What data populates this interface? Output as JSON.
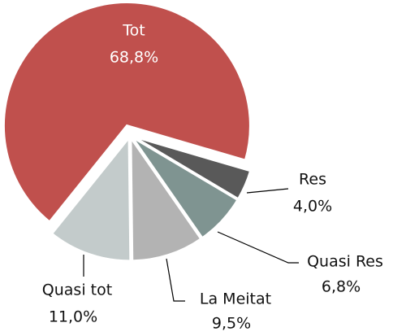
{
  "chart_data": {
    "type": "pie",
    "categories": [
      "Tot",
      "Res",
      "Quasi Res",
      "La Meitat",
      "Quasi tot"
    ],
    "values": [
      68.8,
      4.0,
      6.8,
      9.5,
      11.0
    ],
    "value_labels": [
      "68,8%",
      "4,0%",
      "6,8%",
      "9,5%",
      "11,0%"
    ],
    "colors": [
      "#c0504d",
      "#595959",
      "#7f9491",
      "#b3b3b3",
      "#c3cbcb"
    ]
  }
}
